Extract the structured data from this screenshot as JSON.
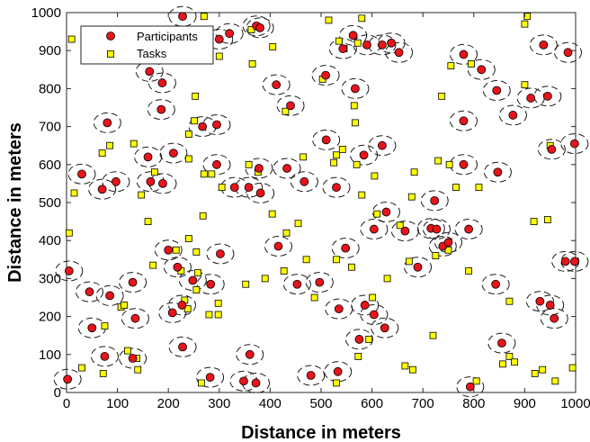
{
  "chart_data": {
    "type": "scatter",
    "xlabel": "Distance in meters",
    "ylabel": "Distance in meters",
    "xlim": [
      0,
      1000
    ],
    "ylim": [
      0,
      1000
    ],
    "xticks": [
      0,
      100,
      200,
      300,
      400,
      500,
      600,
      700,
      800,
      900,
      1000
    ],
    "yticks": [
      0,
      100,
      200,
      300,
      400,
      500,
      600,
      700,
      800,
      900,
      1000
    ],
    "legend_position": "top-left",
    "grid": false,
    "series": [
      {
        "name": "Participants",
        "marker": "circle",
        "color": "#e8141b",
        "ring": "dashed ellipse",
        "points": [
          [
            228,
            990
          ],
          [
            300,
            930
          ],
          [
            320,
            945
          ],
          [
            373,
            965
          ],
          [
            380,
            960
          ],
          [
            543,
            905
          ],
          [
            563,
            940
          ],
          [
            590,
            915
          ],
          [
            620,
            915
          ],
          [
            638,
            920
          ],
          [
            653,
            895
          ],
          [
            780,
            890
          ],
          [
            937,
            915
          ],
          [
            985,
            895
          ],
          [
            163,
            845
          ],
          [
            188,
            815
          ],
          [
            412,
            810
          ],
          [
            440,
            755
          ],
          [
            509,
            835
          ],
          [
            567,
            800
          ],
          [
            80,
            710
          ],
          [
            186,
            745
          ],
          [
            267,
            700
          ],
          [
            295,
            705
          ],
          [
            780,
            715
          ],
          [
            815,
            850
          ],
          [
            845,
            795
          ],
          [
            877,
            730
          ],
          [
            912,
            775
          ],
          [
            945,
            780
          ],
          [
            30,
            575
          ],
          [
            70,
            535
          ],
          [
            97,
            555
          ],
          [
            160,
            620
          ],
          [
            165,
            555
          ],
          [
            189,
            550
          ],
          [
            210,
            630
          ],
          [
            295,
            600
          ],
          [
            330,
            540
          ],
          [
            358,
            540
          ],
          [
            378,
            590
          ],
          [
            433,
            590
          ],
          [
            467,
            555
          ],
          [
            510,
            665
          ],
          [
            530,
            540
          ],
          [
            584,
            625
          ],
          [
            620,
            650
          ],
          [
            723,
            505
          ],
          [
            780,
            600
          ],
          [
            847,
            580
          ],
          [
            953,
            640
          ],
          [
            998,
            655
          ],
          [
            381,
            525
          ],
          [
            200,
            375
          ],
          [
            218,
            330
          ],
          [
            248,
            295
          ],
          [
            283,
            285
          ],
          [
            302,
            365
          ],
          [
            416,
            385
          ],
          [
            548,
            380
          ],
          [
            604,
            430
          ],
          [
            628,
            475
          ],
          [
            665,
            425
          ],
          [
            716,
            432
          ],
          [
            727,
            430
          ],
          [
            739,
            385
          ],
          [
            750,
            395
          ],
          [
            790,
            430
          ],
          [
            690,
            330
          ],
          [
            5,
            320
          ],
          [
            45,
            265
          ],
          [
            50,
            170
          ],
          [
            85,
            255
          ],
          [
            75,
            95
          ],
          [
            130,
            290
          ],
          [
            135,
            195
          ],
          [
            130,
            90
          ],
          [
            208,
            210
          ],
          [
            227,
            230
          ],
          [
            228,
            120
          ],
          [
            282,
            40
          ],
          [
            360,
            100
          ],
          [
            348,
            30
          ],
          [
            372,
            25
          ],
          [
            453,
            285
          ],
          [
            480,
            45
          ],
          [
            497,
            290
          ],
          [
            535,
            220
          ],
          [
            533,
            55
          ],
          [
            575,
            140
          ],
          [
            586,
            230
          ],
          [
            604,
            205
          ],
          [
            625,
            170
          ],
          [
            793,
            15
          ],
          [
            843,
            285
          ],
          [
            855,
            130
          ],
          [
            930,
            240
          ],
          [
            950,
            230
          ],
          [
            958,
            195
          ],
          [
            980,
            345
          ],
          [
            998,
            345
          ],
          [
            2,
            35
          ]
        ]
      },
      {
        "name": "Tasks",
        "marker": "square",
        "color": "#ffff00",
        "points": [
          [
            10,
            930
          ],
          [
            270,
            990
          ],
          [
            300,
            885
          ],
          [
            363,
            955
          ],
          [
            405,
            910
          ],
          [
            365,
            865
          ],
          [
            515,
            980
          ],
          [
            535,
            925
          ],
          [
            545,
            905
          ],
          [
            580,
            985
          ],
          [
            572,
            920
          ],
          [
            755,
            860
          ],
          [
            795,
            865
          ],
          [
            900,
            970
          ],
          [
            905,
            990
          ],
          [
            900,
            810
          ],
          [
            253,
            780
          ],
          [
            503,
            825
          ],
          [
            565,
            755
          ],
          [
            737,
            780
          ],
          [
            430,
            740
          ],
          [
            251,
            715
          ],
          [
            240,
            680
          ],
          [
            85,
            650
          ],
          [
            132,
            655
          ],
          [
            70,
            630
          ],
          [
            270,
            575
          ],
          [
            285,
            575
          ],
          [
            305,
            540
          ],
          [
            358,
            600
          ],
          [
            376,
            580
          ],
          [
            465,
            620
          ],
          [
            525,
            605
          ],
          [
            530,
            625
          ],
          [
            542,
            640
          ],
          [
            567,
            710
          ],
          [
            570,
            600
          ],
          [
            605,
            570
          ],
          [
            683,
            580
          ],
          [
            730,
            610
          ],
          [
            752,
            600
          ],
          [
            765,
            540
          ],
          [
            810,
            540
          ],
          [
            950,
            650
          ],
          [
            240,
            615
          ],
          [
            173,
            580
          ],
          [
            15,
            525
          ],
          [
            147,
            520
          ],
          [
            160,
            450
          ],
          [
            268,
            465
          ],
          [
            404,
            470
          ],
          [
            432,
            420
          ],
          [
            455,
            445
          ],
          [
            580,
            520
          ],
          [
            610,
            470
          ],
          [
            655,
            440
          ],
          [
            678,
            515
          ],
          [
            918,
            450
          ],
          [
            945,
            455
          ],
          [
            240,
            405
          ],
          [
            255,
            370
          ],
          [
            215,
            375
          ],
          [
            170,
            335
          ],
          [
            225,
            320
          ],
          [
            258,
            315
          ],
          [
            255,
            270
          ],
          [
            232,
            243
          ],
          [
            238,
            220
          ],
          [
            280,
            205
          ],
          [
            298,
            205
          ],
          [
            298,
            235
          ],
          [
            352,
            285
          ],
          [
            390,
            300
          ],
          [
            427,
            320
          ],
          [
            471,
            350
          ],
          [
            487,
            250
          ],
          [
            530,
            350
          ],
          [
            560,
            330
          ],
          [
            601,
            250
          ],
          [
            630,
            300
          ],
          [
            673,
            345
          ],
          [
            725,
            360
          ],
          [
            750,
            375
          ],
          [
            790,
            320
          ],
          [
            870,
            240
          ],
          [
            920,
            50
          ],
          [
            935,
            60
          ],
          [
            960,
            30
          ],
          [
            994,
            65
          ],
          [
            870,
            95
          ],
          [
            880,
            80
          ],
          [
            857,
            75
          ],
          [
            805,
            30
          ],
          [
            720,
            150
          ],
          [
            680,
            60
          ],
          [
            665,
            70
          ],
          [
            594,
            140
          ],
          [
            573,
            95
          ],
          [
            530,
            25
          ],
          [
            265,
            25
          ],
          [
            120,
            110
          ],
          [
            138,
            90
          ],
          [
            140,
            60
          ],
          [
            72,
            50
          ],
          [
            30,
            65
          ],
          [
            75,
            175
          ],
          [
            107,
            225
          ],
          [
            113,
            230
          ],
          [
            5,
            420
          ]
        ]
      }
    ]
  }
}
